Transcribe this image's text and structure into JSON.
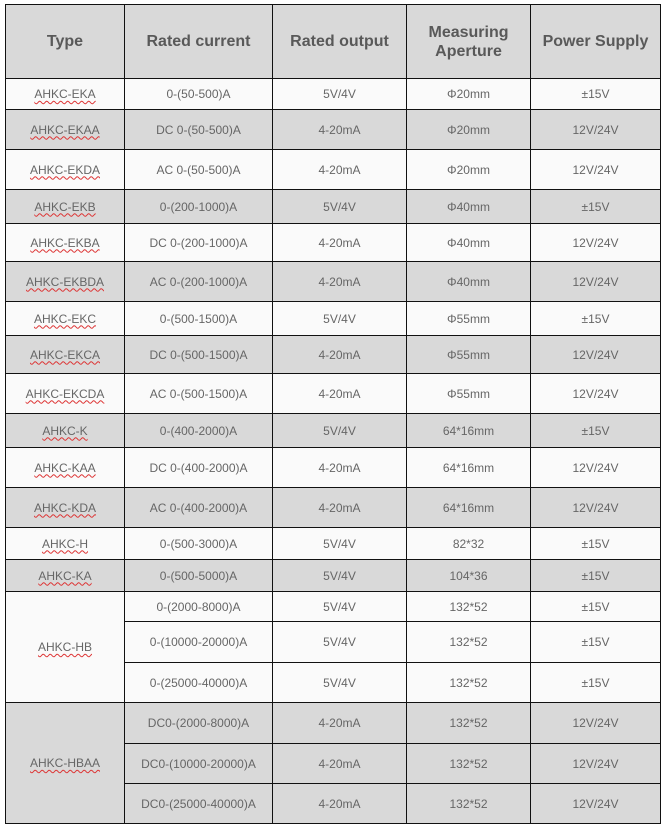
{
  "headers": [
    "Type",
    "Rated current",
    "Rated output",
    "Measuring Aperture",
    "Power Supply"
  ],
  "rows": [
    {
      "type": "AHKC-EKA",
      "current": "0-(50-500)A",
      "output": "5V/4V",
      "aperture": "Φ20mm",
      "supply": "±15V"
    },
    {
      "type": "AHKC-EKAA",
      "current": "DC 0-(50-500)A",
      "output": "4-20mA",
      "aperture": "Φ20mm",
      "supply": "12V/24V"
    },
    {
      "type": "AHKC-EKDA",
      "current": "AC 0-(50-500)A",
      "output": "4-20mA",
      "aperture": "Φ20mm",
      "supply": "12V/24V"
    },
    {
      "type": "AHKC-EKB",
      "current": "0-(200-1000)A",
      "output": "5V/4V",
      "aperture": "Φ40mm",
      "supply": "±15V"
    },
    {
      "type": "AHKC-EKBA",
      "current": "DC 0-(200-1000)A",
      "output": "4-20mA",
      "aperture": "Φ40mm",
      "supply": "12V/24V"
    },
    {
      "type": "AHKC-EKBDA",
      "current": "AC 0-(200-1000)A",
      "output": "4-20mA",
      "aperture": "Φ40mm",
      "supply": "12V/24V"
    },
    {
      "type": "AHKC-EKC",
      "current": "0-(500-1500)A",
      "output": "5V/4V",
      "aperture": "Φ55mm",
      "supply": "±15V"
    },
    {
      "type": "AHKC-EKCA",
      "current": "DC 0-(500-1500)A",
      "output": "4-20mA",
      "aperture": "Φ55mm",
      "supply": "12V/24V"
    },
    {
      "type": "AHKC-EKCDA",
      "current": "AC 0-(500-1500)A",
      "output": "4-20mA",
      "aperture": "Φ55mm",
      "supply": "12V/24V"
    },
    {
      "type": "AHKC-K",
      "current": "0-(400-2000)A",
      "output": "5V/4V",
      "aperture": "64*16mm",
      "supply": "±15V"
    },
    {
      "type": "AHKC-KAA",
      "current": "DC 0-(400-2000)A",
      "output": "4-20mA",
      "aperture": "64*16mm",
      "supply": "12V/24V"
    },
    {
      "type": "AHKC-KDA",
      "current": "AC 0-(400-2000)A",
      "output": "4-20mA",
      "aperture": "64*16mm",
      "supply": "12V/24V"
    },
    {
      "type": "AHKC-H",
      "current": "0-(500-3000)A",
      "output": "5V/4V",
      "aperture": "82*32",
      "supply": "±15V"
    },
    {
      "type": "AHKC-KA",
      "current": "0-(500-5000)A",
      "output": "5V/4V",
      "aperture": "104*36",
      "supply": "±15V"
    }
  ],
  "groups": [
    {
      "type": "AHKC-HB",
      "rows": [
        {
          "current": "0-(2000-8000)A",
          "output": "5V/4V",
          "aperture": "132*52",
          "supply": "±15V"
        },
        {
          "current": "0-(10000-20000)A",
          "output": "5V/4V",
          "aperture": "132*52",
          "supply": "±15V"
        },
        {
          "current": "0-(25000-40000)A",
          "output": "5V/4V",
          "aperture": "132*52",
          "supply": "±15V"
        }
      ]
    },
    {
      "type": "AHKC-HBAA",
      "rows": [
        {
          "current": "DC0-(2000-8000)A",
          "output": "4-20mA",
          "aperture": "132*52",
          "supply": "12V/24V"
        },
        {
          "current": "DC0-(10000-20000)A",
          "output": "4-20mA",
          "aperture": "132*52",
          "supply": "12V/24V"
        },
        {
          "current": "DC0-(25000-40000)A",
          "output": "4-20mA",
          "aperture": "132*52",
          "supply": "12V/24V"
        }
      ]
    }
  ]
}
